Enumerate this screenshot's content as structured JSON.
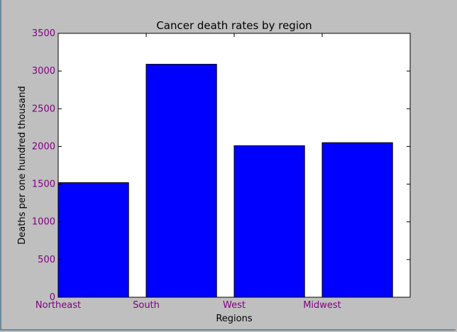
{
  "chart_data": {
    "type": "bar",
    "title": "Cancer death rates by region",
    "xlabel": "Regions",
    "ylabel": "Deaths per one hundred thousand",
    "categories": [
      "Northeast",
      "South",
      "West",
      "Midwest"
    ],
    "values": [
      1520,
      3090,
      2010,
      2050
    ],
    "ylim": [
      0,
      3500
    ],
    "yticks": [
      0,
      500,
      1000,
      1500,
      2000,
      2500,
      3000,
      3500
    ],
    "xlim": [
      0,
      4
    ],
    "bar_align": "left",
    "bar_width": 0.8,
    "grid": false,
    "legend": "none",
    "colors": {
      "bar_fill": "#0000ff",
      "bar_edge": "#000000",
      "tick_label": "#800080",
      "figure_bg": "#bfbfbf",
      "axes_bg": "#ffffff"
    }
  }
}
